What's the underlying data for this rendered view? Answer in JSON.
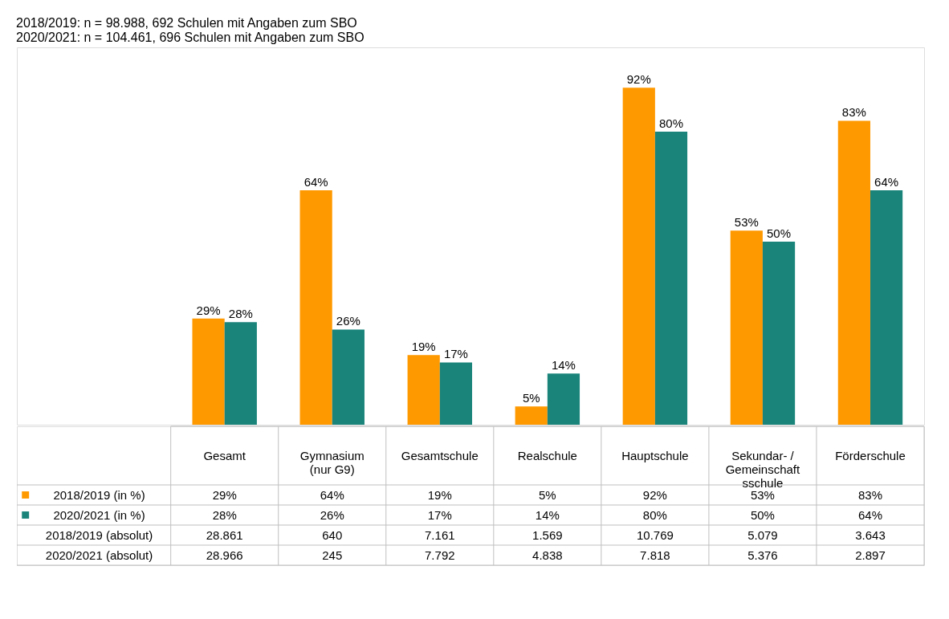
{
  "chart_data": {
    "type": "bar",
    "title": "2018/2019: n = 98.988, 692 Schulen mit Angaben zum SBO",
    "subtitle": "2020/2021: n = 104.461, 696 Schulen mit Angaben zum SBO",
    "categories": [
      "Gesamt",
      "Gymnasium\n(nur G9)",
      "Gesamtschule",
      "Realschule",
      "Hauptschule",
      "Sekundar- /\nGemeinschaft\nsschule",
      "Förderschule"
    ],
    "series": [
      {
        "name": "2018/2019 (in %)",
        "color": "#ff9900",
        "values": [
          29,
          64,
          19,
          5,
          92,
          53,
          83
        ],
        "value_labels": [
          "29%",
          "64%",
          "19%",
          "5%",
          "92%",
          "53%",
          "83%"
        ]
      },
      {
        "name": "2020/2021  (in %)",
        "color": "#1a847b",
        "values": [
          28,
          26,
          17,
          14,
          80,
          50,
          64
        ],
        "value_labels": [
          "28%",
          "26%",
          "17%",
          "14%",
          "80%",
          "50%",
          "64%"
        ]
      }
    ],
    "annotations": [
      "2018/2019 (absolut)",
      "28.861",
      "640",
      "7.161",
      "1.569",
      "10.769",
      "5.079",
      "3.643",
      "2020/2021 (absolut)",
      "28.966",
      "245",
      "7.792",
      "4.838",
      "7.818",
      "5.376",
      "2.897"
    ],
    "legend": "bottom"
  }
}
